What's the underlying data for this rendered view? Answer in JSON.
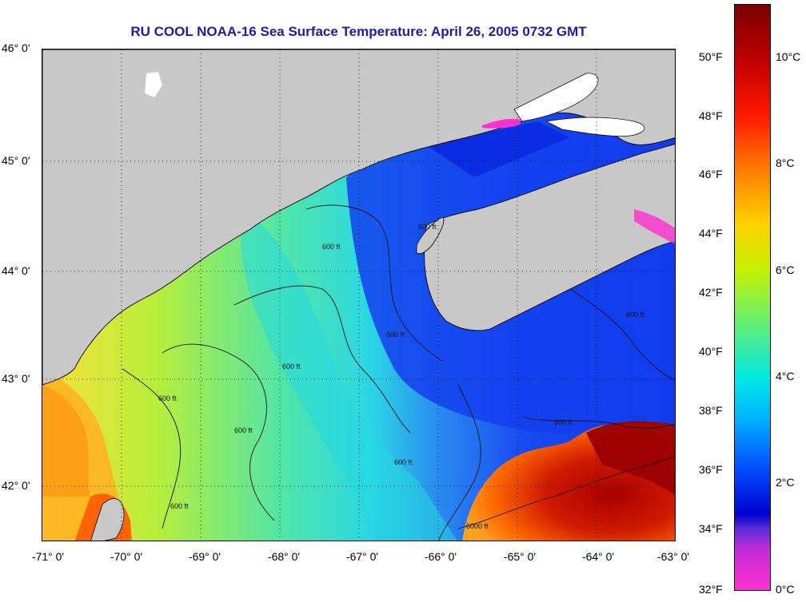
{
  "title": "RU COOL  NOAA-16  Sea Surface Temperature:  April 26, 2005 0732 GMT",
  "latitude_labels": [
    "46° 0'",
    "45° 0'",
    "44° 0'",
    "43° 0'",
    "42° 0'"
  ],
  "longitude_labels": [
    "-71° 0'",
    "-70° 0'",
    "-69° 0'",
    "-68° 0'",
    "-67° 0'",
    "-66° 0'",
    "-65° 0'",
    "-64° 0'",
    "-63° 0'"
  ],
  "colorbar": {
    "fahrenheit_labels": [
      "50°F",
      "48°F",
      "46°F",
      "44°F",
      "42°F",
      "40°F",
      "38°F",
      "36°F",
      "34°F",
      "32°F"
    ],
    "celsius_labels": [
      "10°C",
      "8°C",
      "6°C",
      "4°C",
      "2°C",
      "0°C"
    ]
  },
  "contour_label": "600 ft",
  "deep_contour_label": "6000 ft",
  "colors": {
    "land": "#c8c8c8",
    "title": "#1c1ca8",
    "cold": "#0a2ae8",
    "mid": "#2ad6e6",
    "warm": "#ff9a10",
    "hot": "#a80000"
  }
}
